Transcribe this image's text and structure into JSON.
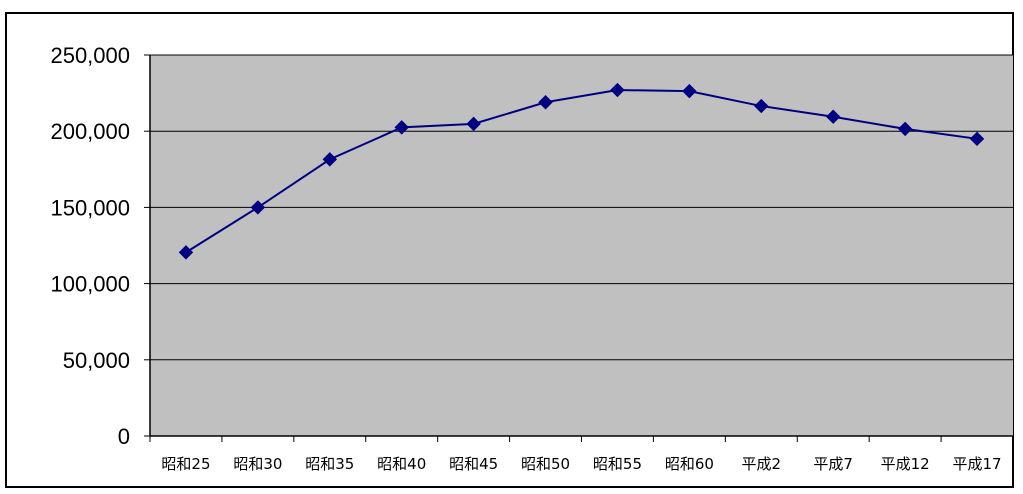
{
  "chart_data": {
    "type": "line",
    "title": "",
    "xlabel": "",
    "ylabel": "",
    "categories": [
      "昭和25",
      "昭和30",
      "昭和35",
      "昭和40",
      "昭和45",
      "昭和50",
      "昭和55",
      "昭和60",
      "平成2",
      "平成7",
      "平成12",
      "平成17"
    ],
    "series": [
      {
        "values": [
          120500,
          150000,
          181500,
          202500,
          204800,
          219000,
          227000,
          226300,
          216500,
          209500,
          201500,
          195000
        ]
      }
    ],
    "ylim": [
      0,
      250000
    ],
    "yticks": [
      0,
      50000,
      100000,
      150000,
      200000,
      250000
    ],
    "ytick_labels": [
      "0",
      "50,000",
      "100,000",
      "150,000",
      "200,000",
      "250,000"
    ],
    "grid": true,
    "legend": "none",
    "colors": {
      "plot_background": "#c0c0c0",
      "line": "#000080",
      "marker": "#000080",
      "gridline": "#000000"
    }
  }
}
